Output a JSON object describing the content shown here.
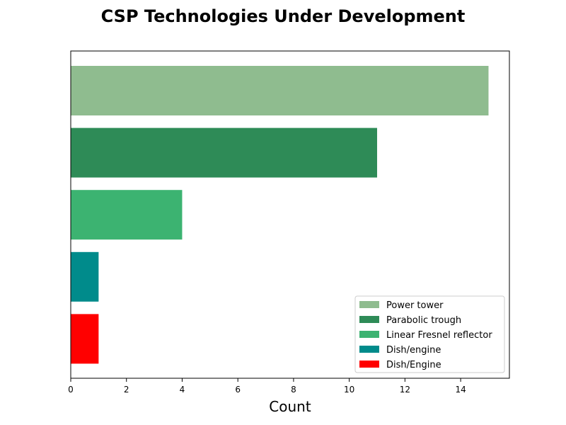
{
  "chart_data": {
    "type": "bar",
    "orientation": "horizontal",
    "title": "CSP Technologies Under Development",
    "xlabel": "Count",
    "ylabel": "",
    "xlim": [
      0,
      15.75
    ],
    "xticks": [
      0,
      2,
      4,
      6,
      8,
      10,
      12,
      14
    ],
    "grid": false,
    "legend_position": "bottom-right",
    "series": [
      {
        "name": "Power tower",
        "value": 15,
        "color": "#8fbc8f"
      },
      {
        "name": "Parabolic trough",
        "value": 11,
        "color": "#2e8b57"
      },
      {
        "name": "Linear Fresnel reflector",
        "value": 4,
        "color": "#3cb371"
      },
      {
        "name": "Dish/engine",
        "value": 1,
        "color": "#008b8b"
      },
      {
        "name": "Dish/Engine",
        "value": 1,
        "color": "#ff0000"
      }
    ]
  }
}
